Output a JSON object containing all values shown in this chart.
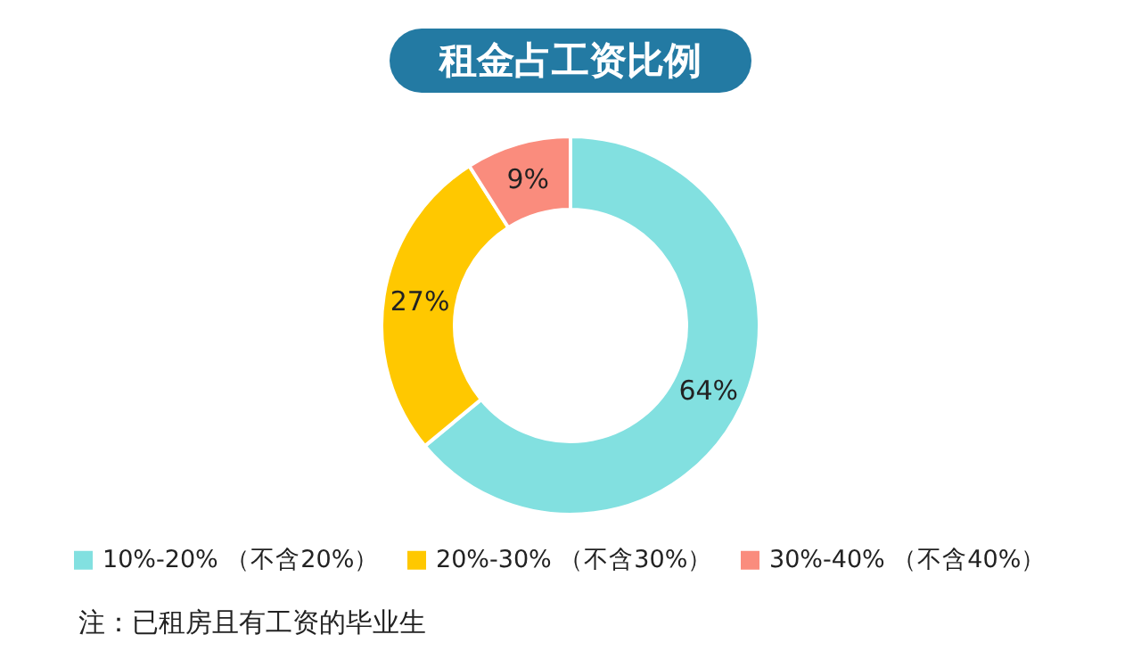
{
  "chart_data": {
    "type": "donut",
    "title": "租金占工资比例",
    "categories": [
      "10%-20% （不含20%）",
      "20%-30% （不含30%）",
      "30%-40% （不含40%）"
    ],
    "values": [
      64,
      27,
      9
    ],
    "value_labels": [
      "64%",
      "27%",
      "9%"
    ],
    "colors": [
      "#82e0e0",
      "#ffc800",
      "#fa8c7d"
    ],
    "legend": "bottom",
    "annotations": [
      "注：已租房且有工资的毕业生"
    ]
  }
}
